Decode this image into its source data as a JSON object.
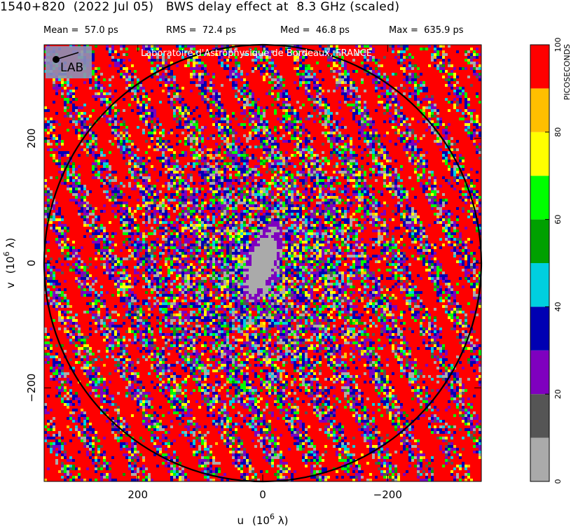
{
  "header": {
    "title": "1540+820  (2022 Jul 05)   BWS delay effect at  8.3 GHz (scaled)",
    "stats": [
      {
        "label": "Mean =",
        "value": "57.0 ps"
      },
      {
        "label": "RMS =",
        "value": "72.4 ps"
      },
      {
        "label": "Med =",
        "value": "46.8 ps"
      },
      {
        "label": "Max =",
        "value": "635.9 ps"
      }
    ]
  },
  "credit": "Laboratoire d'Astrophysique de Bordeaux, FRANCE",
  "logo_text": "LAB",
  "chart_data": {
    "type": "heatmap",
    "xlabel_main": "u",
    "xlabel_unit": "(10",
    "xlabel_exp": "6",
    "xlabel_tail": " λ)",
    "ylabel_main": "v",
    "ylabel_unit": "(10",
    "ylabel_exp": "6",
    "ylabel_tail": " λ)",
    "xlim": [
      350,
      -350
    ],
    "ylim": [
      -350,
      350
    ],
    "x_ticks": [
      {
        "value": 200,
        "label": "200"
      },
      {
        "value": 0,
        "label": "0"
      },
      {
        "value": -200,
        "label": "−200"
      }
    ],
    "y_ticks": [
      {
        "value": 200,
        "label": "200"
      },
      {
        "value": 0,
        "label": "0"
      },
      {
        "value": -200,
        "label": "−200"
      }
    ],
    "circle_radius": 350,
    "colorbar": {
      "label": "PICOSECONDS",
      "min": 0,
      "max": 100,
      "tick_values": [
        0,
        20,
        40,
        60,
        80,
        100
      ],
      "tick_labels": [
        "0",
        "20",
        "40",
        "60",
        "80",
        "100"
      ],
      "colors": [
        "#aaaaaa",
        "#555555",
        "#7f00bf",
        "#0000b2",
        "#00cfdf",
        "#00a000",
        "#00ff00",
        "#ffff00",
        "#ffbf00",
        "#ff0000"
      ]
    }
  }
}
